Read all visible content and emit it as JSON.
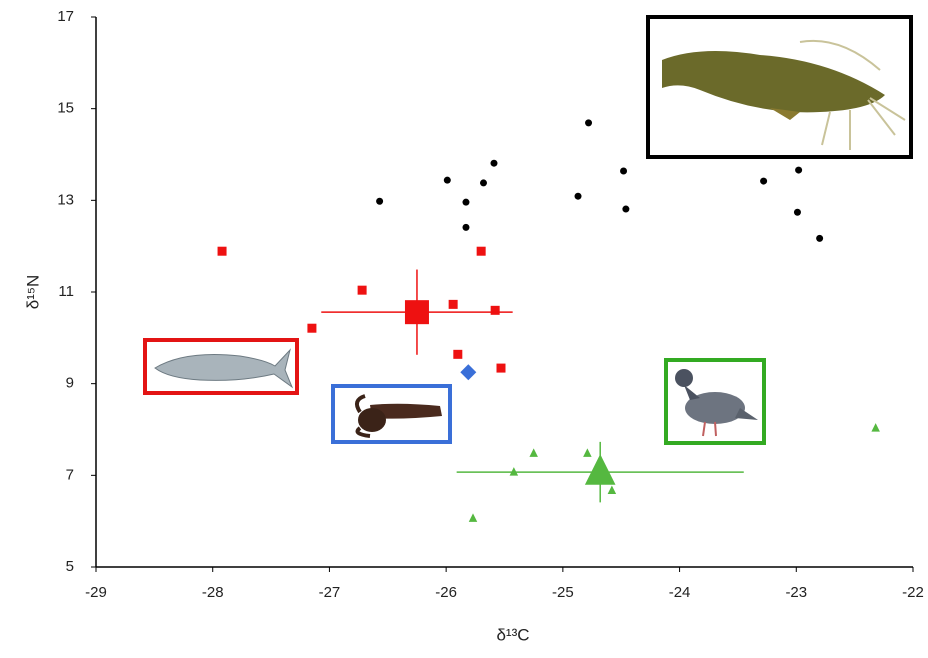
{
  "chart_data": {
    "type": "scatter",
    "xlabel": "δ¹³C",
    "ylabel": "δ¹⁵N",
    "xlim": [
      -29,
      -22
    ],
    "xticks": [
      -29,
      -28,
      -27,
      -26,
      -25,
      -24,
      -23,
      -22
    ],
    "ylim": [
      5,
      17
    ],
    "yticks": [
      5,
      7,
      9,
      11,
      13,
      15,
      17
    ],
    "grid": false,
    "series": [
      {
        "color": "#000000",
        "marker": "circle",
        "size": 7,
        "x": [
          -26.57,
          -25.99,
          -25.83,
          -25.83,
          -25.68,
          -25.59,
          -24.78,
          -24.87,
          -24.48,
          -24.46,
          -23.28,
          -22.98,
          -22.99,
          -22.8
        ],
        "y": [
          12.98,
          13.44,
          12.96,
          12.41,
          13.38,
          13.81,
          14.69,
          13.09,
          13.64,
          12.81,
          13.42,
          13.66,
          12.74,
          12.17
        ]
      },
      {
        "color": "#ee1111",
        "marker": "square",
        "size": 9,
        "x": [
          -27.92,
          -26.72,
          -27.15,
          -25.94,
          -25.7,
          -25.58,
          -25.9,
          -25.53
        ],
        "y": [
          11.89,
          11.04,
          10.21,
          10.73,
          11.89,
          10.6,
          9.64,
          9.34
        ]
      },
      {
        "color": "#ee1111",
        "marker": "square",
        "size": 24,
        "x": [
          -26.25
        ],
        "y": [
          10.56
        ],
        "xerr": [
          0.82
        ],
        "yerr": [
          0.93
        ]
      },
      {
        "color": "#3a6fd8",
        "marker": "diamond",
        "size": 16,
        "x": [
          -25.81
        ],
        "y": [
          9.25
        ],
        "xerr": [
          0.05
        ],
        "yerr": [
          0.12
        ]
      },
      {
        "color": "#55b840",
        "marker": "triangle",
        "size": 10,
        "x": [
          -25.25,
          -24.79,
          -25.42,
          -25.77,
          -24.58,
          -22.32
        ],
        "y": [
          7.48,
          7.48,
          7.07,
          6.06,
          6.67,
          8.03
        ]
      },
      {
        "color": "#55b840",
        "marker": "triangle",
        "size": 36,
        "x": [
          -24.68
        ],
        "y": [
          7.07
        ],
        "xerr": [
          1.23
        ],
        "yerr": [
          0.66
        ]
      }
    ]
  }
}
